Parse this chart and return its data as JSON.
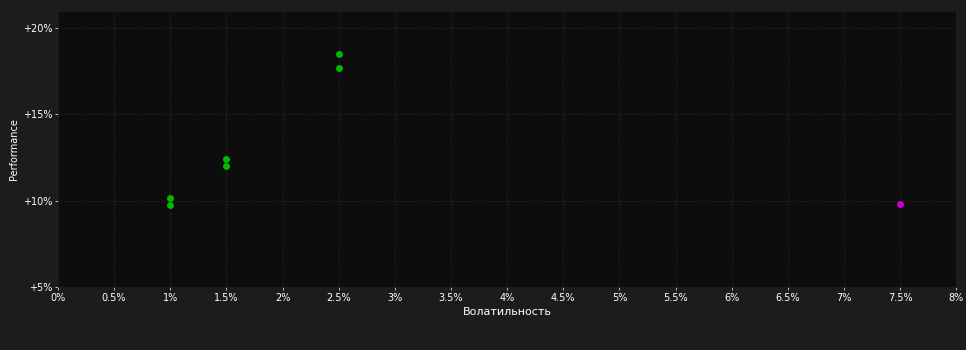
{
  "background_color": "#1c1c1c",
  "plot_bg_color": "#0d0d0d",
  "grid_color": "#2a2a2a",
  "text_color": "#ffffff",
  "xlabel": "Волатильность",
  "ylabel": "Performance",
  "xlim": [
    0.0,
    0.08
  ],
  "ylim": [
    0.05,
    0.21
  ],
  "xticks": [
    0.0,
    0.005,
    0.01,
    0.015,
    0.02,
    0.025,
    0.03,
    0.035,
    0.04,
    0.045,
    0.05,
    0.055,
    0.06,
    0.065,
    0.07,
    0.075,
    0.08
  ],
  "xtick_labels": [
    "0%",
    "0.5%",
    "1%",
    "1.5%",
    "2%",
    "2.5%",
    "3%",
    "3.5%",
    "4%",
    "4.5%",
    "5%",
    "5.5%",
    "6%",
    "6.5%",
    "7%",
    "7.5%",
    "8%"
  ],
  "yticks": [
    0.05,
    0.1,
    0.15,
    0.2
  ],
  "ytick_labels": [
    "+5%",
    "+10%",
    "+15%",
    "+20%"
  ],
  "green_points": [
    [
      0.01,
      0.1015
    ],
    [
      0.01,
      0.0975
    ],
    [
      0.015,
      0.124
    ],
    [
      0.015,
      0.12
    ],
    [
      0.025,
      0.185
    ],
    [
      0.025,
      0.177
    ]
  ],
  "magenta_points": [
    [
      0.075,
      0.098
    ]
  ],
  "green_color": "#00bb00",
  "magenta_color": "#cc00cc",
  "point_size": 25,
  "grid_style": "dotted",
  "font_size_ticks": 7,
  "font_size_label": 8,
  "font_size_ylabel": 7
}
